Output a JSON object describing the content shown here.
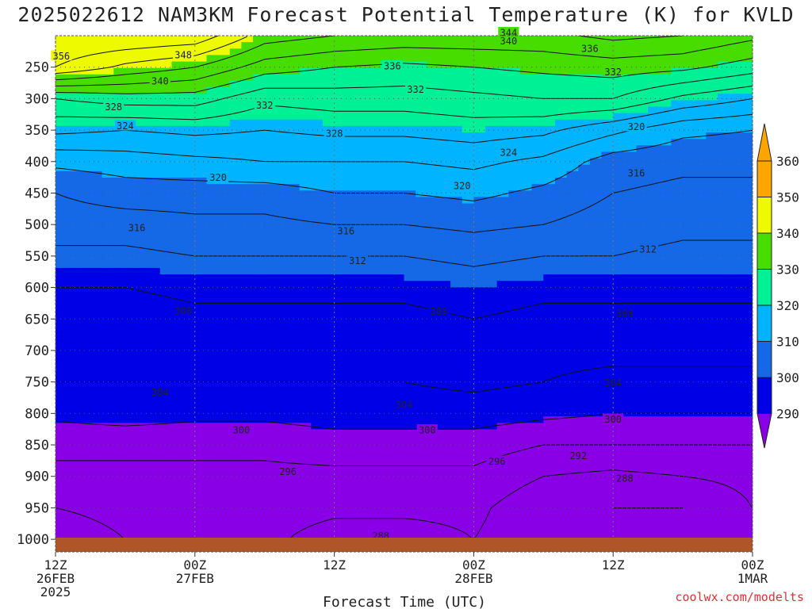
{
  "header": {
    "title": "2025022612 NAM3KM Forecast Potential Temperature (K) for KVLD",
    "credit": "coolwx.com/modelts"
  },
  "colors": {
    "band_290": "#8a00e6",
    "band_300": "#0000e6",
    "band_310": "#1569e6",
    "band_320": "#00b4ff",
    "band_330": "#00f096",
    "band_340": "#47dd00",
    "band_350": "#eefa00",
    "band_360": "#ffa500",
    "ground": "#b0552a"
  },
  "chart_data": {
    "type": "heatmap",
    "title": "2025022612 NAM3KM Forecast Potential Temperature (K) for KVLD",
    "xlabel": "Forecast Time (UTC)",
    "ylabel": "",
    "x_ticks": [
      {
        "hour": 0,
        "line1": "12Z",
        "line2": "26FEB",
        "line3": "2025"
      },
      {
        "hour": 12,
        "line1": "00Z",
        "line2": "27FEB",
        "line3": ""
      },
      {
        "hour": 24,
        "line1": "12Z",
        "line2": "",
        "line3": ""
      },
      {
        "hour": 36,
        "line1": "00Z",
        "line2": "28FEB",
        "line3": ""
      },
      {
        "hour": 48,
        "line1": "12Z",
        "line2": "",
        "line3": ""
      },
      {
        "hour": 60,
        "line1": "00Z",
        "line2": "1MAR",
        "line3": ""
      }
    ],
    "xlim": [
      0,
      60
    ],
    "y_ticks": [
      250,
      300,
      350,
      400,
      450,
      500,
      550,
      600,
      650,
      700,
      750,
      800,
      850,
      900,
      950,
      1000
    ],
    "ylim": [
      1020,
      200
    ],
    "colorbar": {
      "levels": [
        290,
        300,
        310,
        320,
        330,
        340,
        350,
        360
      ]
    },
    "contour_levels": [
      288,
      292,
      296,
      300,
      304,
      308,
      312,
      316,
      320,
      324,
      328,
      332,
      336,
      340,
      344,
      348,
      352,
      356
    ],
    "profile_pressures": [
      200,
      250,
      300,
      350,
      400,
      450,
      500,
      550,
      600,
      650,
      700,
      750,
      800,
      850,
      900,
      950,
      1000,
      1020
    ],
    "profiles": [
      {
        "hour": 0,
        "theta": [
          360,
          356,
          336,
          329,
          321,
          316,
          314,
          311,
          308,
          306,
          305,
          304,
          301,
          297,
          295,
          292,
          288,
          288
        ]
      },
      {
        "hour": 6,
        "theta": [
          360,
          351,
          338,
          328,
          322,
          318,
          314,
          311,
          308,
          306,
          305,
          304,
          302,
          297,
          295,
          294,
          292,
          292
        ]
      },
      {
        "hour": 12,
        "theta": [
          359,
          348,
          338,
          329,
          323,
          318,
          315,
          312,
          309,
          307,
          305,
          304,
          301,
          297,
          295,
          294,
          293,
          293
        ]
      },
      {
        "hour": 18,
        "theta": [
          350,
          342,
          333,
          328,
          324,
          318,
          315,
          312,
          309,
          307,
          305,
          304,
          301,
          297,
          295,
          294,
          293,
          293
        ]
      },
      {
        "hour": 24,
        "theta": [
          348,
          340,
          334,
          329,
          324,
          320,
          316,
          312,
          309,
          307,
          305,
          304,
          302,
          298,
          295,
          293,
          290,
          290
        ]
      },
      {
        "hour": 30,
        "theta": [
          347,
          339,
          334,
          329,
          324,
          320,
          316,
          312,
          309,
          307,
          305,
          304,
          302,
          298,
          295,
          293,
          290,
          290
        ]
      },
      {
        "hour": 36,
        "theta": [
          347,
          340,
          335,
          330,
          325,
          321,
          317,
          313,
          310,
          308,
          306,
          305,
          302,
          298,
          295,
          293,
          292,
          292
        ]
      },
      {
        "hour": 42,
        "theta": [
          347,
          341,
          336,
          329,
          323,
          319,
          316,
          312,
          309,
          307,
          305,
          304,
          301,
          296,
          292,
          289,
          289,
          289
        ]
      },
      {
        "hour": 48,
        "theta": [
          349,
          342,
          336,
          325,
          318,
          316,
          314,
          312,
          309,
          307,
          305,
          303,
          300,
          296,
          291,
          288,
          288,
          288
        ]
      },
      {
        "hour": 54,
        "theta": [
          348,
          341,
          331,
          321,
          317,
          315,
          313,
          311,
          309,
          307,
          305,
          303,
          300,
          296,
          292,
          288,
          288,
          288
        ]
      },
      {
        "hour": 60,
        "theta": [
          345,
          338,
          328,
          320,
          317,
          315,
          313,
          311,
          309,
          307,
          305,
          303,
          300,
          296,
          293,
          292,
          292,
          292
        ]
      }
    ],
    "contour_labels": [
      {
        "hour": 0.5,
        "p": 232,
        "text": "356"
      },
      {
        "hour": 11,
        "p": 230,
        "text": "348"
      },
      {
        "hour": 9,
        "p": 272,
        "text": "340"
      },
      {
        "hour": 5,
        "p": 313,
        "text": "328"
      },
      {
        "hour": 6,
        "p": 343,
        "text": "324"
      },
      {
        "hour": 18,
        "p": 310,
        "text": "332"
      },
      {
        "hour": 31,
        "p": 285,
        "text": "332"
      },
      {
        "hour": 29,
        "p": 248,
        "text": "336"
      },
      {
        "hour": 39,
        "p": 208,
        "text": "340"
      },
      {
        "hour": 39,
        "p": 195,
        "text": "344"
      },
      {
        "hour": 46,
        "p": 220,
        "text": "336"
      },
      {
        "hour": 48,
        "p": 257,
        "text": "332"
      },
      {
        "hour": 24,
        "p": 355,
        "text": "328"
      },
      {
        "hour": 39,
        "p": 385,
        "text": "324"
      },
      {
        "hour": 50,
        "p": 344,
        "text": "320"
      },
      {
        "hour": 14,
        "p": 425,
        "text": "320"
      },
      {
        "hour": 35,
        "p": 438,
        "text": "320"
      },
      {
        "hour": 50,
        "p": 418,
        "text": "316"
      },
      {
        "hour": 7,
        "p": 505,
        "text": "316"
      },
      {
        "hour": 25,
        "p": 510,
        "text": "316"
      },
      {
        "hour": 26,
        "p": 557,
        "text": "312"
      },
      {
        "hour": 51,
        "p": 539,
        "text": "312"
      },
      {
        "hour": 11,
        "p": 637,
        "text": "308"
      },
      {
        "hour": 33,
        "p": 638,
        "text": "308"
      },
      {
        "hour": 49,
        "p": 641,
        "text": "308"
      },
      {
        "hour": 9,
        "p": 766,
        "text": "304"
      },
      {
        "hour": 30,
        "p": 786,
        "text": "304"
      },
      {
        "hour": 48,
        "p": 751,
        "text": "304"
      },
      {
        "hour": 16,
        "p": 826,
        "text": "300"
      },
      {
        "hour": 32,
        "p": 826,
        "text": "300"
      },
      {
        "hour": 48,
        "p": 809,
        "text": "300"
      },
      {
        "hour": 20,
        "p": 892,
        "text": "296"
      },
      {
        "hour": 38,
        "p": 876,
        "text": "296"
      },
      {
        "hour": 45,
        "p": 867,
        "text": "292"
      },
      {
        "hour": 49,
        "p": 903,
        "text": "288"
      },
      {
        "hour": 28,
        "p": 994,
        "text": "288"
      }
    ]
  }
}
